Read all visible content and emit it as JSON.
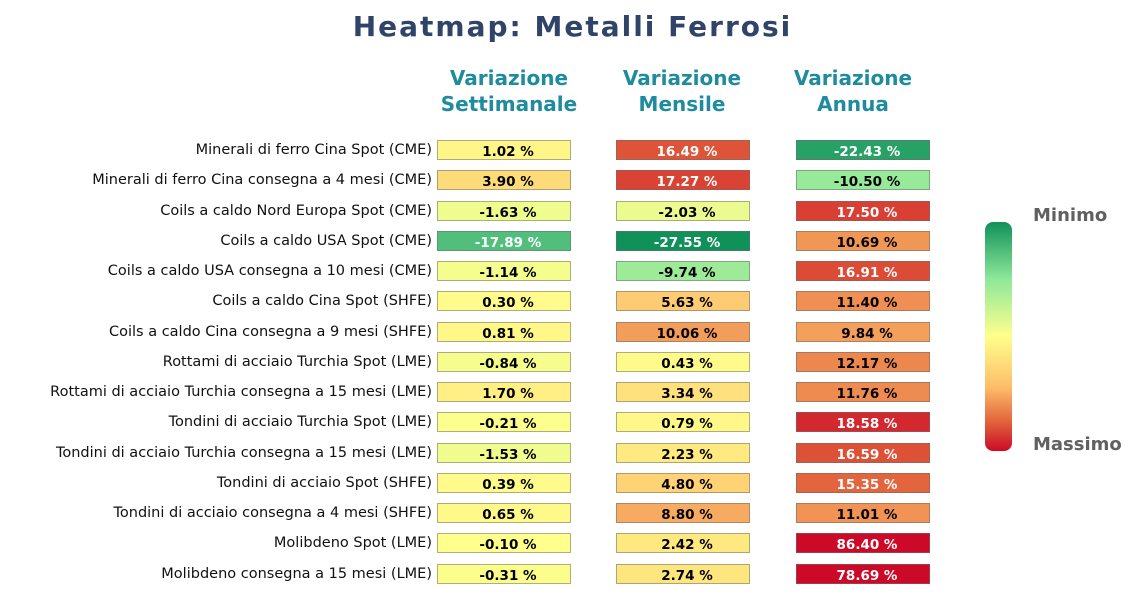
{
  "title": "Heatmap: Metalli Ferrosi",
  "columns": [
    [
      "Variazione",
      "Settimanale"
    ],
    [
      "Variazione",
      "Mensile"
    ],
    [
      "Variazione",
      "Annua"
    ]
  ],
  "legend": {
    "top_label": "Minimo",
    "bottom_label": "Massimo"
  },
  "colors": {
    "title": "#2f4468",
    "column_header": "#1e8c9e",
    "scale": [
      "#10915a",
      "#8ee89a",
      "#ffff8c",
      "#fdbe6a",
      "#e05e3a",
      "#cc0a28"
    ]
  },
  "chart_data": {
    "type": "heatmap",
    "title": "Heatmap: Metalli Ferrosi",
    "value_suffix": " %",
    "columns": [
      "Variazione Settimanale",
      "Variazione Mensile",
      "Variazione Annua"
    ],
    "rows": [
      {
        "label": "Minerali di ferro Cina Spot (CME)",
        "values": [
          1.02,
          16.49,
          -22.43
        ]
      },
      {
        "label": "Minerali di ferro Cina consegna a 4 mesi (CME)",
        "values": [
          3.9,
          17.27,
          -10.5
        ]
      },
      {
        "label": "Coils a caldo Nord Europa Spot (CME)",
        "values": [
          -1.63,
          -2.03,
          17.5
        ]
      },
      {
        "label": "Coils a caldo USA Spot (CME)",
        "values": [
          -17.89,
          -27.55,
          10.69
        ]
      },
      {
        "label": "Coils a caldo USA consegna a 10 mesi (CME)",
        "values": [
          -1.14,
          -9.74,
          16.91
        ]
      },
      {
        "label": "Coils a caldo Cina Spot (SHFE)",
        "values": [
          0.3,
          5.63,
          11.4
        ]
      },
      {
        "label": "Coils a caldo Cina consegna a 9 mesi (SHFE)",
        "values": [
          0.81,
          10.06,
          9.84
        ]
      },
      {
        "label": "Rottami di acciaio Turchia Spot (LME)",
        "values": [
          -0.84,
          0.43,
          12.17
        ]
      },
      {
        "label": "Rottami di acciaio Turchia consegna a 15 mesi (LME)",
        "values": [
          1.7,
          3.34,
          11.76
        ]
      },
      {
        "label": "Tondini di acciaio Turchia Spot (LME)",
        "values": [
          -0.21,
          0.79,
          18.58
        ]
      },
      {
        "label": "Tondini di acciaio Turchia consegna a 15 mesi (LME)",
        "values": [
          -1.53,
          2.23,
          16.59
        ]
      },
      {
        "label": "Tondini di acciaio Spot (SHFE)",
        "values": [
          0.39,
          4.8,
          15.35
        ]
      },
      {
        "label": "Tondini di acciaio consegna a 4 mesi (SHFE)",
        "values": [
          0.65,
          8.8,
          11.01
        ]
      },
      {
        "label": "Molibdeno Spot (LME)",
        "values": [
          -0.1,
          2.42,
          86.4
        ]
      },
      {
        "label": "Molibdeno consegna a 15 mesi (LME)",
        "values": [
          -0.31,
          2.74,
          78.69
        ]
      }
    ],
    "color_scale": {
      "top": "Minimo",
      "bottom": "Massimo"
    }
  }
}
